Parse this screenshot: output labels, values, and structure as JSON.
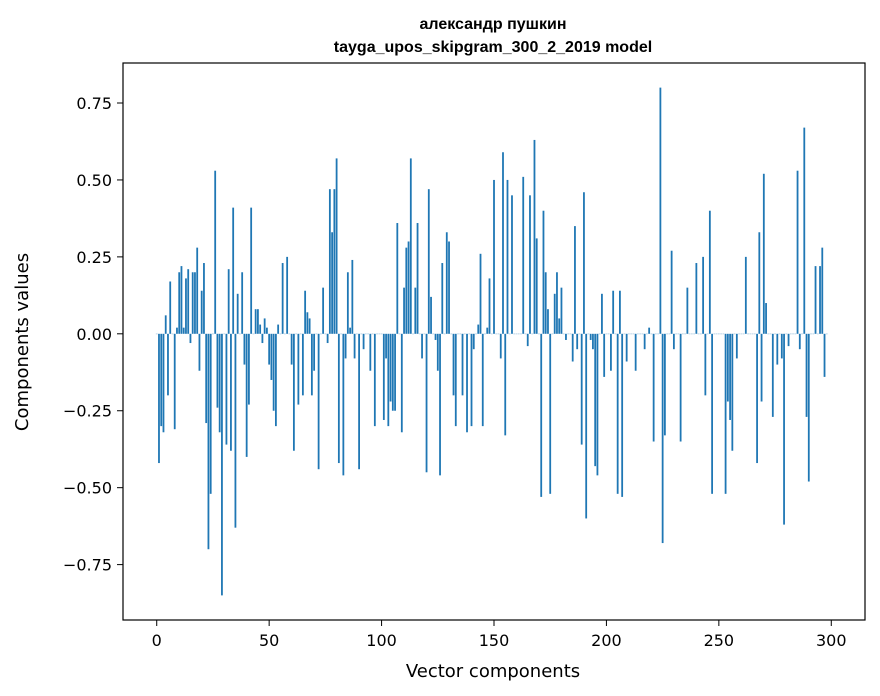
{
  "chart_data": {
    "type": "bar",
    "title_line1": "александр пушкин",
    "title_line2": "tayga_upos_skipgram_300_2_2019 model",
    "xlabel": "Vector components",
    "ylabel": "Components values",
    "xlim": [
      -15,
      315
    ],
    "ylim": [
      -0.93,
      0.88
    ],
    "xticks": [
      0,
      50,
      100,
      150,
      200,
      250,
      300
    ],
    "xtick_labels": [
      "0",
      "50",
      "100",
      "150",
      "200",
      "250",
      "300"
    ],
    "yticks": [
      -0.75,
      -0.5,
      -0.25,
      0.0,
      0.25,
      0.5,
      0.75
    ],
    "ytick_labels": [
      "−0.75",
      "−0.50",
      "−0.25",
      "0.00",
      "0.25",
      "0.50",
      "0.75"
    ],
    "grid": false,
    "bar_color": "#1f77b4",
    "values": [
      0.0,
      -0.42,
      -0.3,
      -0.32,
      0.06,
      -0.2,
      0.17,
      0.0,
      -0.31,
      0.02,
      0.2,
      0.22,
      0.02,
      0.18,
      0.21,
      -0.03,
      0.2,
      0.2,
      0.28,
      -0.12,
      0.14,
      0.23,
      -0.29,
      -0.7,
      -0.52,
      0.0,
      0.53,
      -0.24,
      -0.32,
      -0.85,
      0.0,
      -0.36,
      0.21,
      -0.38,
      0.41,
      -0.63,
      0.13,
      0.0,
      0.2,
      -0.1,
      -0.4,
      -0.23,
      0.41,
      0.0,
      0.08,
      0.08,
      0.03,
      -0.03,
      0.05,
      0.02,
      -0.1,
      -0.15,
      -0.25,
      -0.3,
      0.03,
      0.0,
      0.23,
      0.0,
      0.25,
      0.0,
      -0.1,
      -0.38,
      0.0,
      -0.23,
      0.0,
      -0.2,
      0.14,
      0.07,
      0.05,
      -0.2,
      -0.12,
      0.0,
      -0.44,
      0.0,
      0.15,
      0.0,
      -0.03,
      0.47,
      0.33,
      0.47,
      0.57,
      -0.42,
      0.0,
      -0.46,
      -0.08,
      0.2,
      0.02,
      0.24,
      -0.08,
      0.0,
      -0.44,
      0.0,
      -0.05,
      0.0,
      0.0,
      -0.12,
      0.0,
      -0.3,
      0.0,
      0.0,
      0.0,
      -0.28,
      -0.08,
      -0.3,
      -0.22,
      -0.25,
      -0.25,
      0.36,
      0.0,
      -0.32,
      0.15,
      0.28,
      0.3,
      0.57,
      0.0,
      0.15,
      0.36,
      0.0,
      -0.08,
      0.0,
      -0.45,
      0.47,
      0.12,
      0.0,
      -0.02,
      -0.12,
      -0.46,
      0.23,
      0.0,
      0.33,
      0.3,
      0.0,
      -0.2,
      -0.3,
      0.0,
      0.0,
      -0.2,
      0.0,
      -0.32,
      0.0,
      -0.3,
      -0.05,
      0.0,
      0.03,
      0.26,
      -0.3,
      0.0,
      0.02,
      0.18,
      0.0,
      0.5,
      0.0,
      0.0,
      -0.08,
      0.59,
      -0.33,
      0.5,
      0.0,
      0.45,
      0.0,
      0.0,
      0.0,
      0.0,
      0.51,
      0.0,
      -0.04,
      0.45,
      0.0,
      0.63,
      0.31,
      0.0,
      -0.53,
      0.4,
      0.2,
      0.08,
      -0.52,
      0.0,
      0.13,
      0.2,
      0.05,
      0.15,
      0.0,
      -0.02,
      0.0,
      0.0,
      -0.09,
      0.35,
      -0.05,
      0.0,
      -0.36,
      0.46,
      -0.6,
      0.0,
      -0.02,
      -0.05,
      -0.43,
      -0.46,
      0.0,
      0.13,
      -0.14,
      0.0,
      0.0,
      -0.12,
      0.14,
      0.0,
      -0.52,
      0.14,
      -0.53,
      0.0,
      -0.09,
      0.0,
      0.0,
      0.0,
      -0.12,
      0.0,
      0.0,
      0.0,
      -0.05,
      0.0,
      0.02,
      0.0,
      -0.35,
      0.0,
      0.0,
      0.8,
      -0.68,
      -0.33,
      0.0,
      0.0,
      0.27,
      -0.05,
      0.0,
      0.0,
      -0.35,
      0.0,
      0.0,
      0.15,
      0.0,
      0.0,
      0.0,
      0.23,
      0.0,
      0.0,
      0.25,
      -0.2,
      0.0,
      0.4,
      -0.52,
      0.0,
      0.0,
      0.0,
      0.0,
      0.0,
      -0.52,
      -0.22,
      -0.28,
      -0.38,
      0.0,
      -0.08,
      0.0,
      0.0,
      0.0,
      0.25,
      0.0,
      0.0,
      0.0,
      0.0,
      -0.42,
      0.33,
      -0.22,
      0.52,
      0.1,
      0.0,
      0.0,
      -0.27,
      0.0,
      -0.1,
      0.0,
      -0.08,
      -0.62,
      0.0,
      -0.04,
      0.0,
      0.0,
      0.0,
      0.53,
      -0.05,
      0.0,
      0.67,
      -0.27,
      -0.48,
      0.0,
      0.0,
      0.22,
      0.0,
      0.22,
      0.28,
      -0.14,
      0.0
    ]
  }
}
